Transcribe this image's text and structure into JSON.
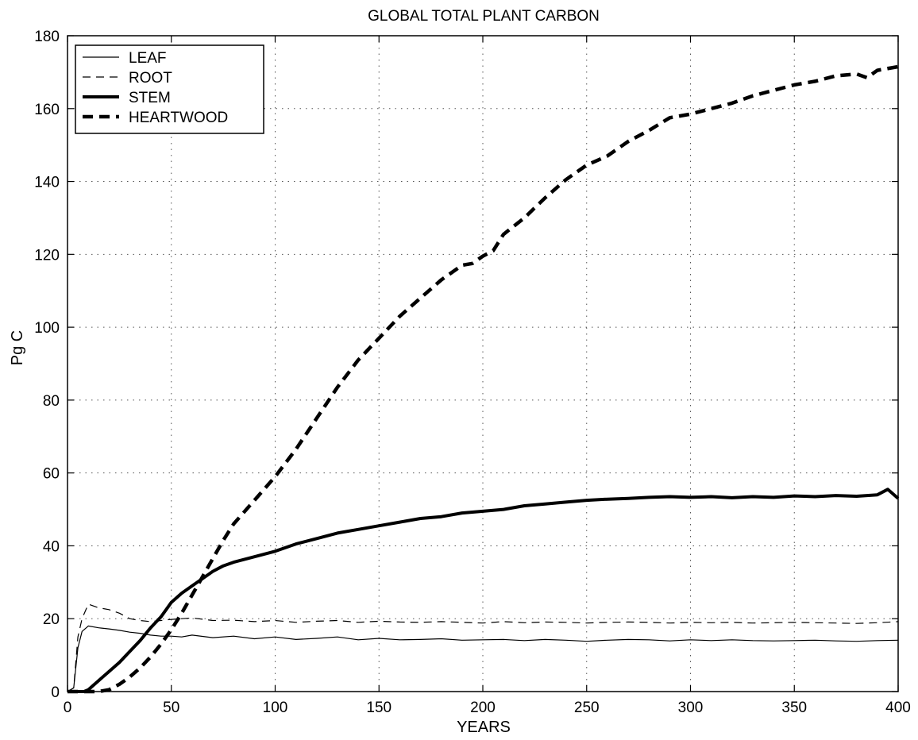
{
  "chart_data": {
    "type": "line",
    "title": "GLOBAL TOTAL PLANT CARBON",
    "xlabel": "YEARS",
    "ylabel": "Pg C",
    "xlim": [
      0,
      400
    ],
    "ylim": [
      0,
      180
    ],
    "xticks": [
      0,
      50,
      100,
      150,
      200,
      250,
      300,
      350,
      400
    ],
    "yticks": [
      0,
      20,
      40,
      60,
      80,
      100,
      120,
      140,
      160,
      180
    ],
    "grid": true,
    "legend_position": "top-left",
    "series": [
      {
        "name": "LEAF",
        "style": "thin-solid",
        "x": [
          0,
          3,
          5,
          7,
          10,
          15,
          20,
          25,
          30,
          35,
          40,
          45,
          50,
          55,
          60,
          70,
          80,
          90,
          100,
          110,
          120,
          130,
          140,
          150,
          160,
          170,
          180,
          190,
          200,
          210,
          220,
          230,
          240,
          250,
          260,
          270,
          280,
          290,
          300,
          310,
          320,
          330,
          340,
          350,
          360,
          370,
          380,
          390,
          400
        ],
        "y": [
          0,
          1,
          12,
          16.5,
          18,
          17.5,
          17.2,
          16.8,
          16.3,
          16,
          15.5,
          15.2,
          15.2,
          15,
          15.5,
          14.8,
          15.2,
          14.5,
          15,
          14.3,
          14.6,
          15,
          14.2,
          14.6,
          14.2,
          14.3,
          14.5,
          14.1,
          14.2,
          14.3,
          14,
          14.3,
          14.1,
          13.8,
          14.1,
          14.3,
          14.2,
          13.9,
          14.2,
          14,
          14.2,
          14,
          13.9,
          14,
          14.1,
          13.9,
          13.8,
          14,
          14.1
        ]
      },
      {
        "name": "ROOT",
        "style": "thin-dashed",
        "x": [
          0,
          3,
          5,
          7,
          10,
          15,
          20,
          25,
          30,
          35,
          40,
          45,
          50,
          55,
          60,
          70,
          80,
          90,
          100,
          110,
          120,
          130,
          140,
          150,
          160,
          170,
          180,
          190,
          200,
          210,
          220,
          230,
          240,
          250,
          260,
          270,
          280,
          290,
          300,
          310,
          320,
          330,
          340,
          350,
          360,
          370,
          380,
          390,
          400
        ],
        "y": [
          0,
          1,
          15,
          20,
          24,
          23,
          22.5,
          21.5,
          20,
          19.5,
          19.2,
          19.5,
          19.8,
          20,
          20.2,
          19.5,
          19.6,
          19.2,
          19.5,
          19,
          19.3,
          19.5,
          19,
          19.3,
          19.1,
          19,
          19.2,
          19,
          18.8,
          19.2,
          18.9,
          19.1,
          19,
          18.8,
          19,
          19.1,
          19,
          18.8,
          19,
          18.9,
          19,
          18.8,
          18.9,
          19,
          18.9,
          18.8,
          18.7,
          18.9,
          19.2
        ]
      },
      {
        "name": "STEM",
        "style": "thick-solid",
        "x": [
          0,
          8,
          10,
          12,
          15,
          20,
          25,
          30,
          35,
          40,
          45,
          50,
          55,
          60,
          65,
          70,
          75,
          80,
          90,
          100,
          110,
          120,
          130,
          140,
          150,
          160,
          170,
          180,
          190,
          200,
          210,
          220,
          230,
          240,
          250,
          260,
          270,
          280,
          290,
          300,
          310,
          320,
          330,
          340,
          350,
          360,
          370,
          380,
          390,
          395,
          400
        ],
        "y": [
          0,
          0,
          0.5,
          1.5,
          3,
          5.5,
          8,
          11,
          14,
          17.5,
          20.5,
          24.5,
          27,
          29,
          31,
          33,
          34.5,
          35.5,
          37,
          38.5,
          40.5,
          42,
          43.5,
          44.5,
          45.5,
          46.5,
          47.5,
          48,
          49,
          49.5,
          50,
          51,
          51.5,
          52,
          52.5,
          52.8,
          53,
          53.3,
          53.5,
          53.3,
          53.5,
          53.2,
          53.5,
          53.3,
          53.7,
          53.5,
          53.8,
          53.6,
          54,
          55.5,
          53
        ]
      },
      {
        "name": "HEARTWOOD",
        "style": "thick-dashed",
        "x": [
          0,
          15,
          20,
          25,
          30,
          35,
          40,
          45,
          50,
          55,
          60,
          65,
          70,
          75,
          80,
          90,
          100,
          110,
          120,
          130,
          140,
          150,
          160,
          170,
          180,
          190,
          195,
          200,
          205,
          210,
          220,
          230,
          240,
          250,
          260,
          270,
          280,
          290,
          300,
          310,
          320,
          330,
          340,
          350,
          360,
          370,
          380,
          385,
          390,
          400
        ],
        "y": [
          0,
          0,
          0.5,
          2,
          4,
          6.5,
          9.5,
          13,
          17,
          21.5,
          26.5,
          31.5,
          36.5,
          41.5,
          46,
          52.5,
          59,
          66.5,
          75,
          83.5,
          91,
          97,
          103,
          108,
          113,
          117,
          117.5,
          119.5,
          121,
          125.5,
          130,
          135.5,
          140.5,
          144.5,
          147,
          151,
          154,
          157.5,
          158.5,
          160,
          161.5,
          163.5,
          165,
          166.5,
          167.5,
          169,
          169.5,
          168.5,
          170.5,
          171.5
        ]
      }
    ]
  }
}
